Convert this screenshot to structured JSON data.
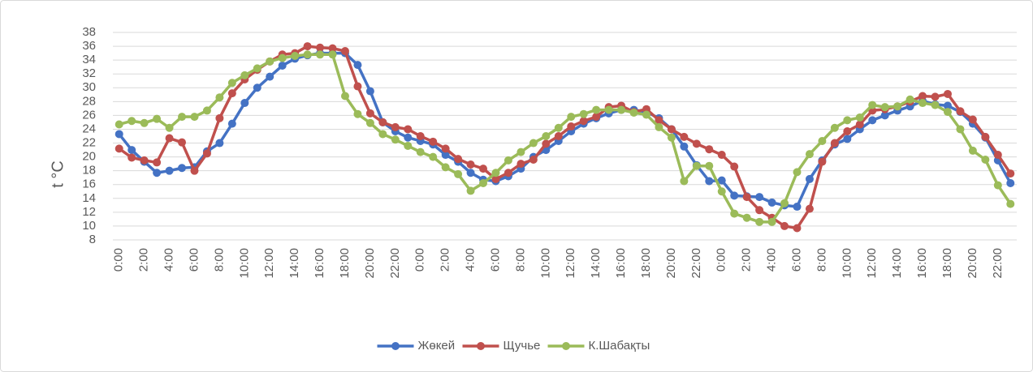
{
  "chart_data": {
    "type": "line",
    "y_label": "t °C",
    "categories": [
      "0:00",
      null,
      "2:00",
      null,
      "4:00",
      null,
      "6:00",
      null,
      "8:00",
      null,
      "10:00",
      null,
      "12:00",
      null,
      "14:00",
      null,
      "16:00",
      null,
      "18:00",
      null,
      "20:00",
      null,
      "22:00",
      null,
      "0:00",
      null,
      "2:00",
      null,
      "4:00",
      null,
      "6:00",
      null,
      "8:00",
      null,
      "10:00",
      null,
      "12:00",
      null,
      "14:00",
      null,
      "16:00",
      null,
      "18:00",
      null,
      "20:00",
      null,
      "22:00",
      null,
      "0:00",
      null,
      "2:00",
      null,
      "4:00",
      null,
      "6:00",
      null,
      "8:00",
      null,
      "10:00",
      null,
      "12:00",
      null,
      "14:00",
      null,
      "16:00",
      null,
      "18:00",
      null,
      "20:00",
      null,
      "22:00",
      null
    ],
    "series": [
      {
        "name": "Жөкей",
        "color": "#4472c4",
        "values": [
          23.3,
          21.0,
          19.3,
          17.7,
          18.0,
          18.4,
          18.5,
          20.8,
          22.0,
          24.8,
          27.8,
          30.0,
          31.6,
          33.2,
          34.2,
          34.7,
          35.0,
          35.0,
          35.0,
          33.3,
          29.5,
          25.0,
          23.7,
          22.8,
          22.3,
          21.8,
          20.3,
          19.3,
          17.7,
          16.7,
          16.5,
          17.2,
          18.3,
          20.0,
          21.0,
          22.3,
          23.7,
          24.8,
          25.6,
          26.3,
          26.8,
          26.8,
          26.5,
          25.6,
          24.0,
          21.5,
          18.8,
          16.5,
          16.6,
          14.4,
          14.3,
          14.2,
          13.4,
          13.0,
          12.8,
          16.8,
          19.5,
          21.8,
          22.6,
          24.0,
          25.3,
          26.0,
          26.7,
          27.3,
          28.1,
          27.6,
          27.4,
          26.5,
          24.8,
          22.8,
          19.5,
          16.2
        ]
      },
      {
        "name": "Щучье",
        "color": "#c0504d",
        "values": [
          21.2,
          19.9,
          19.5,
          19.2,
          22.7,
          22.1,
          18.0,
          20.5,
          25.6,
          29.2,
          31.2,
          32.6,
          33.8,
          34.8,
          35.0,
          36.0,
          35.8,
          35.7,
          35.3,
          30.2,
          26.3,
          25.0,
          24.3,
          24.0,
          23.0,
          22.2,
          21.2,
          19.7,
          18.9,
          18.3,
          16.8,
          17.7,
          19.0,
          19.6,
          21.9,
          23.0,
          24.4,
          25.2,
          25.8,
          27.2,
          27.4,
          26.5,
          26.9,
          25.3,
          24.0,
          22.9,
          21.9,
          21.1,
          20.3,
          18.6,
          14.2,
          12.3,
          11.2,
          10.0,
          9.7,
          12.5,
          19.3,
          22.0,
          23.7,
          24.7,
          26.7,
          26.9,
          27.3,
          28.0,
          28.8,
          28.7,
          29.1,
          26.6,
          25.4,
          22.9,
          20.3,
          17.6
        ]
      },
      {
        "name": "К.Шабақты",
        "color": "#9bbb59",
        "values": [
          24.7,
          25.2,
          24.9,
          25.5,
          24.2,
          25.8,
          25.8,
          26.7,
          28.6,
          30.7,
          31.8,
          32.8,
          33.8,
          34.3,
          34.6,
          34.8,
          34.8,
          34.8,
          28.8,
          26.2,
          24.9,
          23.3,
          22.5,
          21.6,
          20.7,
          20.0,
          18.5,
          17.5,
          15.1,
          16.2,
          17.7,
          19.5,
          20.7,
          22.0,
          23.0,
          24.2,
          25.8,
          26.2,
          26.8,
          26.8,
          26.8,
          26.4,
          26.1,
          24.3,
          22.8,
          16.5,
          18.7,
          18.7,
          15.0,
          11.8,
          11.2,
          10.6,
          10.6,
          13.3,
          17.8,
          20.4,
          22.3,
          24.2,
          25.3,
          25.7,
          27.5,
          27.2,
          27.3,
          28.3,
          27.8,
          27.5,
          26.5,
          24.0,
          20.9,
          19.6,
          15.9,
          13.2
        ]
      }
    ],
    "ylim": [
      8,
      38
    ],
    "yticks": [
      8,
      10,
      12,
      14,
      16,
      18,
      20,
      22,
      24,
      26,
      28,
      30,
      32,
      34,
      36,
      38
    ],
    "grid": true,
    "legend": "bottom"
  }
}
